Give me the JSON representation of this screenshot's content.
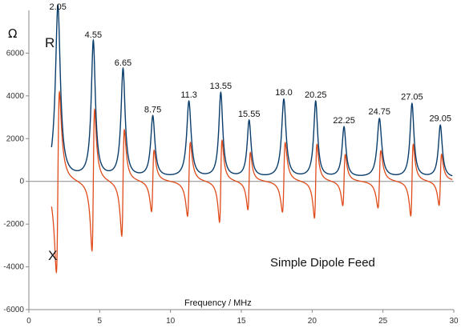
{
  "chart_data": {
    "type": "line",
    "title": "",
    "xlabel": "Frequency / MHz",
    "ylabel": "Ω",
    "xlim": [
      0,
      30
    ],
    "ylim": [
      -6000,
      8000
    ],
    "x_ticks": [
      0,
      5,
      10,
      15,
      20,
      25,
      30
    ],
    "y_ticks": [
      -6000,
      -4000,
      -2000,
      0,
      2000,
      4000,
      6000
    ],
    "annotation": "Simple Dipole Feed",
    "colors": {
      "R": "#0b3d6b",
      "X": "#e04b1a",
      "axis": "#8a8a8a"
    },
    "series": [
      {
        "name": "R",
        "baseline": 150
      },
      {
        "name": "X"
      }
    ],
    "peaks": [
      {
        "label": "2.05",
        "f": 2.05,
        "R": 8200,
        "Xmax": 4400,
        "Xmin": -4400
      },
      {
        "label": "4.55",
        "f": 4.55,
        "R": 6500,
        "Xmax": 3500,
        "Xmin": -3400
      },
      {
        "label": "6.65",
        "f": 6.65,
        "R": 5200,
        "Xmax": 2500,
        "Xmin": -2700
      },
      {
        "label": "8.75",
        "f": 8.75,
        "R": 3000,
        "Xmax": 1500,
        "Xmin": -1500
      },
      {
        "label": "11.3",
        "f": 11.3,
        "R": 3700,
        "Xmax": 1900,
        "Xmin": -1700
      },
      {
        "label": "13.55",
        "f": 13.55,
        "R": 4100,
        "Xmax": 2000,
        "Xmin": -2000
      },
      {
        "label": "15.55",
        "f": 15.55,
        "R": 2800,
        "Xmax": 1400,
        "Xmin": -1400
      },
      {
        "label": "18.0",
        "f": 18.0,
        "R": 3800,
        "Xmax": 1900,
        "Xmin": -1500
      },
      {
        "label": "20.25",
        "f": 20.25,
        "R": 3700,
        "Xmax": 1800,
        "Xmin": -1800
      },
      {
        "label": "22.25",
        "f": 22.25,
        "R": 2500,
        "Xmax": 1300,
        "Xmin": -1200
      },
      {
        "label": "24.75",
        "f": 24.75,
        "R": 2900,
        "Xmax": 1500,
        "Xmin": -1300
      },
      {
        "label": "27.05",
        "f": 27.05,
        "R": 3600,
        "Xmax": 1800,
        "Xmin": -1700
      },
      {
        "label": "29.05",
        "f": 29.05,
        "R": 2600,
        "Xmax": 1300,
        "Xmin": -1200
      }
    ]
  }
}
